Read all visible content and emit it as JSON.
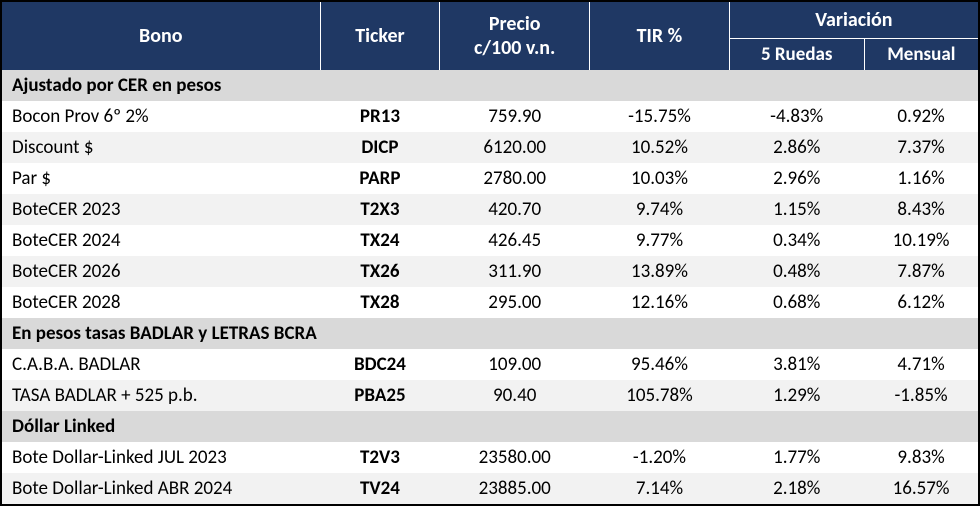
{
  "headers": {
    "bono": "Bono",
    "ticker": "Ticker",
    "precio_line1": "Precio",
    "precio_line2": "c/100 v.n.",
    "tir": "TIR %",
    "variacion": "Variación",
    "ruedas5": "5 Ruedas",
    "mensual": "Mensual"
  },
  "colors": {
    "header_bg": "#1f3864",
    "header_fg": "#ffffff",
    "section_bg": "#d9d9d9",
    "row_alt_bg": "#f2f2f2",
    "row_white_bg": "#ffffff",
    "border": "#000000"
  },
  "sections": [
    {
      "title": "Ajustado por CER en pesos",
      "rows": [
        {
          "bono": "Bocon Prov 6º 2%",
          "ticker": "PR13",
          "precio": "759.90",
          "tir": "-15.75%",
          "r5": "-4.83%",
          "mens": "0.92%"
        },
        {
          "bono": "Discount $",
          "ticker": "DICP",
          "precio": "6120.00",
          "tir": "10.52%",
          "r5": "2.86%",
          "mens": "7.37%"
        },
        {
          "bono": "Par $",
          "ticker": "PARP",
          "precio": "2780.00",
          "tir": "10.03%",
          "r5": "2.96%",
          "mens": "1.16%"
        },
        {
          "bono": "BoteCER 2023",
          "ticker": "T2X3",
          "precio": "420.70",
          "tir": "9.74%",
          "r5": "1.15%",
          "mens": "8.43%"
        },
        {
          "bono": "BoteCER 2024",
          "ticker": "TX24",
          "precio": "426.45",
          "tir": "9.77%",
          "r5": "0.34%",
          "mens": "10.19%"
        },
        {
          "bono": "BoteCER 2026",
          "ticker": "TX26",
          "precio": "311.90",
          "tir": "13.89%",
          "r5": "0.48%",
          "mens": "7.87%"
        },
        {
          "bono": "BoteCER 2028",
          "ticker": "TX28",
          "precio": "295.00",
          "tir": "12.16%",
          "r5": "0.68%",
          "mens": "6.12%"
        }
      ]
    },
    {
      "title": "En pesos tasas BADLAR y LETRAS BCRA",
      "rows": [
        {
          "bono": "C.A.B.A. BADLAR",
          "ticker": "BDC24",
          "precio": "109.00",
          "tir": "95.46%",
          "r5": "3.81%",
          "mens": "4.71%"
        },
        {
          "bono": "TASA BADLAR + 525 p.b.",
          "ticker": "PBA25",
          "precio": "90.40",
          "tir": "105.78%",
          "r5": "1.29%",
          "mens": "-1.85%"
        }
      ]
    },
    {
      "title": "Dóllar Linked",
      "rows": [
        {
          "bono": "Bote Dollar-Linked JUL 2023",
          "ticker": "T2V3",
          "precio": "23580.00",
          "tir": "-1.20%",
          "r5": "1.77%",
          "mens": "9.83%"
        },
        {
          "bono": "Bote Dollar-Linked ABR 2024",
          "ticker": "TV24",
          "precio": "23885.00",
          "tir": "7.14%",
          "r5": "2.18%",
          "mens": "16.57%"
        }
      ]
    }
  ]
}
